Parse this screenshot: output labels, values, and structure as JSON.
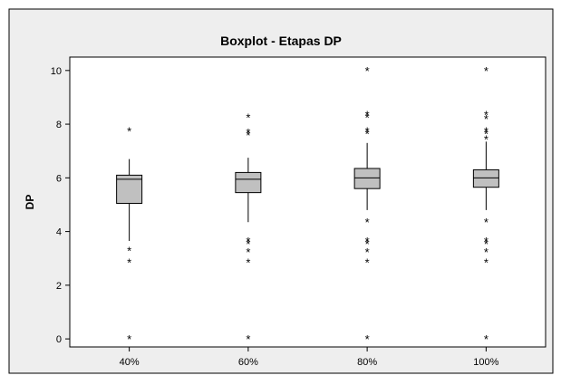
{
  "chart_data": {
    "type": "boxplot",
    "title": "Boxplot - Etapas DP",
    "xlabel": "",
    "ylabel": "DP",
    "ylim": [
      -0.3,
      10.5
    ],
    "yticks": [
      0,
      2,
      4,
      6,
      8,
      10
    ],
    "grid": false,
    "categories": [
      "40%",
      "60%",
      "80%",
      "100%"
    ],
    "boxes": [
      {
        "category": "40%",
        "q1": 5.05,
        "median": 5.95,
        "q3": 6.1,
        "whisker_low": 3.65,
        "whisker_high": 6.7,
        "outliers": [
          7.75,
          3.3,
          2.85,
          0
        ]
      },
      {
        "category": "60%",
        "q1": 5.45,
        "median": 5.95,
        "q3": 6.2,
        "whisker_low": 4.35,
        "whisker_high": 6.75,
        "outliers": [
          8.25,
          7.7,
          7.6,
          3.65,
          3.55,
          3.25,
          2.85,
          0
        ]
      },
      {
        "category": "80%",
        "q1": 5.6,
        "median": 6.0,
        "q3": 6.35,
        "whisker_low": 4.8,
        "whisker_high": 7.3,
        "outliers": [
          10.0,
          8.35,
          8.25,
          7.75,
          7.65,
          4.35,
          3.65,
          3.55,
          3.25,
          2.85,
          0
        ]
      },
      {
        "category": "100%",
        "q1": 5.65,
        "median": 6.0,
        "q3": 6.3,
        "whisker_low": 4.8,
        "whisker_high": 7.35,
        "outliers": [
          10.0,
          8.35,
          8.2,
          7.75,
          7.65,
          7.45,
          4.35,
          3.65,
          3.55,
          3.25,
          2.85,
          0
        ]
      }
    ]
  },
  "colors": {
    "frame_background": "#EEEEEE",
    "plot_background": "#FFFFFF",
    "box_fill": "#C0C0C0",
    "line": "#000000"
  }
}
